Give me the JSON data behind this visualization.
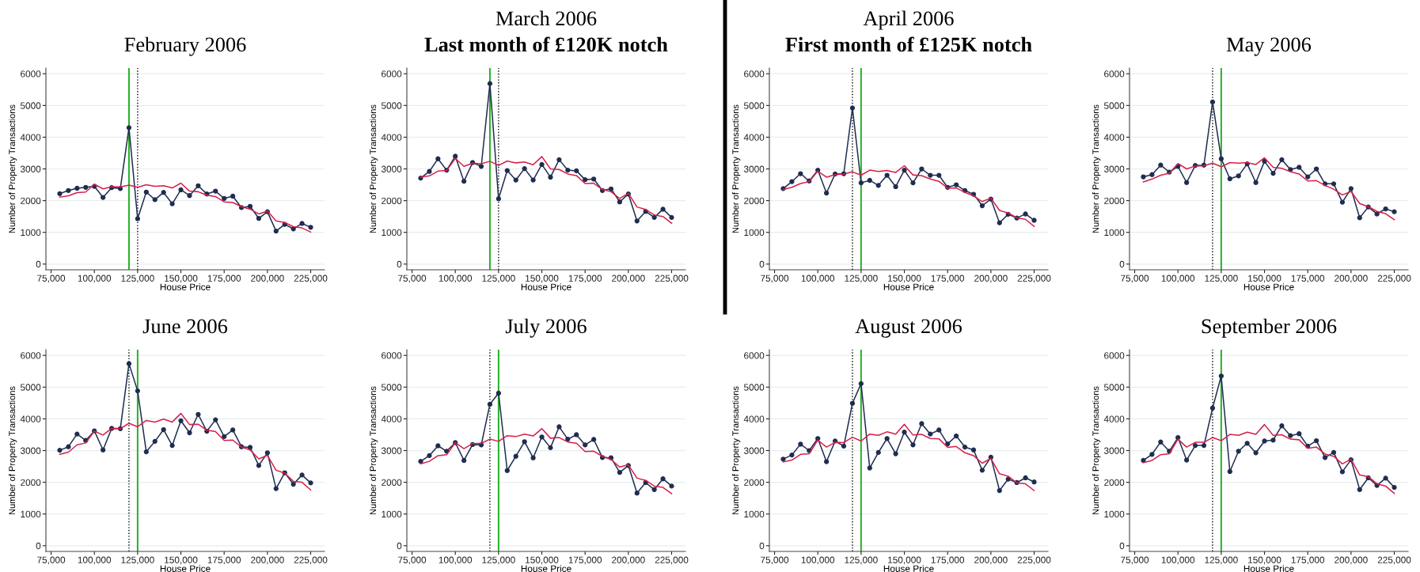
{
  "chart_data": [
    {
      "type": "line",
      "title": "February 2006",
      "xlabel": "House Price",
      "ylabel": "Number of Property Transactions",
      "x": [
        80000,
        85000,
        90000,
        95000,
        100000,
        105000,
        110000,
        115000,
        120000,
        125000,
        130000,
        135000,
        140000,
        145000,
        150000,
        155000,
        160000,
        165000,
        170000,
        175000,
        180000,
        185000,
        190000,
        195000,
        200000,
        205000,
        210000,
        215000,
        220000,
        225000
      ],
      "xlim": [
        72000,
        233000
      ],
      "xticks": [
        {
          "value": 75000,
          "label": "75,000"
        },
        {
          "value": 100000,
          "label": "100,000"
        },
        {
          "value": 125000,
          "label": "125,000"
        },
        {
          "value": 150000,
          "label": "150,000"
        },
        {
          "value": 175000,
          "label": "175,000"
        },
        {
          "value": 200000,
          "label": "200,000"
        },
        {
          "value": 225000,
          "label": "225,000"
        }
      ],
      "ylim": [
        -180,
        6180
      ],
      "yticks": [
        0,
        1000,
        2000,
        3000,
        4000,
        5000,
        6000
      ],
      "grid": "y",
      "ref_lines": [
        {
          "axis": "x",
          "value": 120000,
          "color": "#22b022",
          "line_style": "solid"
        },
        {
          "axis": "x",
          "value": 125000,
          "color": "#000000",
          "line_style": "dotted"
        }
      ],
      "series": [
        {
          "color": "#1f2d50",
          "marker": "circle",
          "values": [
            2220,
            2320,
            2390,
            2420,
            2450,
            2100,
            2410,
            2380,
            4300,
            1430,
            2270,
            2030,
            2260,
            1900,
            2340,
            2160,
            2470,
            2210,
            2300,
            2070,
            2140,
            1780,
            1820,
            1440,
            1650,
            1040,
            1250,
            1110,
            1280,
            1160
          ]
        },
        {
          "color": "#d6204a",
          "marker": "none",
          "values": [
            2110,
            2150,
            2250,
            2270,
            2520,
            2370,
            2440,
            2430,
            2490,
            2420,
            2500,
            2450,
            2470,
            2400,
            2550,
            2300,
            2280,
            2170,
            2130,
            1960,
            1940,
            1810,
            1730,
            1580,
            1670,
            1360,
            1310,
            1180,
            1140,
            1010
          ]
        }
      ]
    },
    {
      "type": "line",
      "title": "March 2006",
      "subtitle": "Last month of £120K notch",
      "xlabel": "House Price",
      "ylabel": "Number of Property Transactions",
      "x": [
        80000,
        85000,
        90000,
        95000,
        100000,
        105000,
        110000,
        115000,
        120000,
        125000,
        130000,
        135000,
        140000,
        145000,
        150000,
        155000,
        160000,
        165000,
        170000,
        175000,
        180000,
        185000,
        190000,
        195000,
        200000,
        205000,
        210000,
        215000,
        220000,
        225000
      ],
      "xlim": [
        72000,
        233000
      ],
      "xticks": [
        {
          "value": 75000,
          "label": "75,000"
        },
        {
          "value": 100000,
          "label": "100,000"
        },
        {
          "value": 125000,
          "label": "125,000"
        },
        {
          "value": 150000,
          "label": "150,000"
        },
        {
          "value": 175000,
          "label": "175,000"
        },
        {
          "value": 200000,
          "label": "200,000"
        },
        {
          "value": 225000,
          "label": "225,000"
        }
      ],
      "ylim": [
        -180,
        6180
      ],
      "yticks": [
        0,
        1000,
        2000,
        3000,
        4000,
        5000,
        6000
      ],
      "grid": "y",
      "ref_lines": [
        {
          "axis": "x",
          "value": 120000,
          "color": "#22b022",
          "line_style": "solid"
        },
        {
          "axis": "x",
          "value": 125000,
          "color": "#000000",
          "line_style": "dotted"
        }
      ],
      "series": [
        {
          "color": "#1f2d50",
          "marker": "circle",
          "values": [
            2710,
            2920,
            3320,
            2960,
            3400,
            2610,
            3200,
            3080,
            5690,
            2060,
            2950,
            2650,
            3010,
            2650,
            3140,
            2740,
            3290,
            2960,
            2940,
            2660,
            2680,
            2320,
            2370,
            1960,
            2210,
            1360,
            1660,
            1470,
            1730,
            1470
          ]
        },
        {
          "color": "#d6204a",
          "marker": "none",
          "values": [
            2740,
            2780,
            2930,
            2950,
            3330,
            3080,
            3180,
            3160,
            3240,
            3110,
            3250,
            3190,
            3220,
            3130,
            3390,
            3000,
            2980,
            2840,
            2790,
            2540,
            2550,
            2350,
            2280,
            2070,
            2230,
            1800,
            1720,
            1550,
            1500,
            1290
          ]
        }
      ]
    },
    {
      "type": "line",
      "title": "April 2006",
      "subtitle": "First month of £125K notch",
      "xlabel": "House Price",
      "ylabel": "Number of Property Transactions",
      "x": [
        80000,
        85000,
        90000,
        95000,
        100000,
        105000,
        110000,
        115000,
        120000,
        125000,
        130000,
        135000,
        140000,
        145000,
        150000,
        155000,
        160000,
        165000,
        170000,
        175000,
        180000,
        185000,
        190000,
        195000,
        200000,
        205000,
        210000,
        215000,
        220000,
        225000
      ],
      "xlim": [
        72000,
        233000
      ],
      "xticks": [
        {
          "value": 75000,
          "label": "75,000"
        },
        {
          "value": 100000,
          "label": "100,000"
        },
        {
          "value": 125000,
          "label": "125,000"
        },
        {
          "value": 150000,
          "label": "150,000"
        },
        {
          "value": 175000,
          "label": "175,000"
        },
        {
          "value": 200000,
          "label": "200,000"
        },
        {
          "value": 225000,
          "label": "225,000"
        }
      ],
      "ylim": [
        -180,
        6180
      ],
      "yticks": [
        0,
        1000,
        2000,
        3000,
        4000,
        5000,
        6000
      ],
      "grid": "y",
      "ref_lines": [
        {
          "axis": "x",
          "value": 120000,
          "color": "#000000",
          "line_style": "dotted"
        },
        {
          "axis": "x",
          "value": 125000,
          "color": "#22b022",
          "line_style": "solid"
        }
      ],
      "series": [
        {
          "color": "#1f2d50",
          "marker": "circle",
          "values": [
            2380,
            2600,
            2850,
            2620,
            2960,
            2240,
            2840,
            2850,
            4920,
            2560,
            2640,
            2480,
            2800,
            2440,
            2960,
            2560,
            3000,
            2800,
            2800,
            2420,
            2500,
            2320,
            2200,
            1840,
            2050,
            1300,
            1570,
            1450,
            1580,
            1380
          ]
        },
        {
          "color": "#d6204a",
          "marker": "none",
          "values": [
            2350,
            2420,
            2540,
            2600,
            2930,
            2740,
            2820,
            2840,
            2910,
            2800,
            2960,
            2920,
            2950,
            2890,
            3100,
            2810,
            2790,
            2680,
            2610,
            2390,
            2400,
            2260,
            2150,
            1970,
            2080,
            1690,
            1610,
            1460,
            1410,
            1190
          ]
        }
      ]
    },
    {
      "type": "line",
      "title": "May 2006",
      "xlabel": "House Price",
      "ylabel": "Number of Property Transactions",
      "x": [
        80000,
        85000,
        90000,
        95000,
        100000,
        105000,
        110000,
        115000,
        120000,
        125000,
        130000,
        135000,
        140000,
        145000,
        150000,
        155000,
        160000,
        165000,
        170000,
        175000,
        180000,
        185000,
        190000,
        195000,
        200000,
        205000,
        210000,
        215000,
        220000,
        225000
      ],
      "xlim": [
        72000,
        233000
      ],
      "xticks": [
        {
          "value": 75000,
          "label": "75,000"
        },
        {
          "value": 100000,
          "label": "100,000"
        },
        {
          "value": 125000,
          "label": "125,000"
        },
        {
          "value": 150000,
          "label": "150,000"
        },
        {
          "value": 175000,
          "label": "175,000"
        },
        {
          "value": 200000,
          "label": "200,000"
        },
        {
          "value": 225000,
          "label": "225,000"
        }
      ],
      "ylim": [
        -180,
        6180
      ],
      "yticks": [
        0,
        1000,
        2000,
        3000,
        4000,
        5000,
        6000
      ],
      "grid": "y",
      "ref_lines": [
        {
          "axis": "x",
          "value": 120000,
          "color": "#000000",
          "line_style": "dotted"
        },
        {
          "axis": "x",
          "value": 125000,
          "color": "#22b022",
          "line_style": "solid"
        }
      ],
      "series": [
        {
          "color": "#1f2d50",
          "marker": "circle",
          "values": [
            2750,
            2820,
            3120,
            2900,
            3080,
            2570,
            3110,
            3120,
            5110,
            3320,
            2690,
            2780,
            3160,
            2570,
            3240,
            2860,
            3290,
            2980,
            3050,
            2750,
            3000,
            2530,
            2530,
            1950,
            2380,
            1460,
            1800,
            1580,
            1740,
            1650
          ]
        },
        {
          "color": "#d6204a",
          "marker": "none",
          "values": [
            2590,
            2680,
            2800,
            2860,
            3170,
            3000,
            3090,
            3100,
            3180,
            3070,
            3200,
            3180,
            3200,
            3140,
            3350,
            3050,
            3020,
            2910,
            2840,
            2620,
            2630,
            2480,
            2360,
            2180,
            2290,
            1910,
            1810,
            1660,
            1590,
            1400
          ]
        }
      ]
    },
    {
      "type": "line",
      "title": "June 2006",
      "xlabel": "House Price",
      "ylabel": "Number of Property Transactions",
      "x": [
        80000,
        85000,
        90000,
        95000,
        100000,
        105000,
        110000,
        115000,
        120000,
        125000,
        130000,
        135000,
        140000,
        145000,
        150000,
        155000,
        160000,
        165000,
        170000,
        175000,
        180000,
        185000,
        190000,
        195000,
        200000,
        205000,
        210000,
        215000,
        220000,
        225000
      ],
      "xlim": [
        72000,
        233000
      ],
      "xticks": [
        {
          "value": 75000,
          "label": "75,000"
        },
        {
          "value": 100000,
          "label": "100,000"
        },
        {
          "value": 125000,
          "label": "125,000"
        },
        {
          "value": 150000,
          "label": "150,000"
        },
        {
          "value": 175000,
          "label": "175,000"
        },
        {
          "value": 200000,
          "label": "200,000"
        },
        {
          "value": 225000,
          "label": "225,000"
        }
      ],
      "ylim": [
        -180,
        6180
      ],
      "yticks": [
        0,
        1000,
        2000,
        3000,
        4000,
        5000,
        6000
      ],
      "grid": "y",
      "ref_lines": [
        {
          "axis": "x",
          "value": 120000,
          "color": "#000000",
          "line_style": "dotted"
        },
        {
          "axis": "x",
          "value": 125000,
          "color": "#22b022",
          "line_style": "solid"
        }
      ],
      "series": [
        {
          "color": "#1f2d50",
          "marker": "circle",
          "values": [
            3010,
            3120,
            3520,
            3320,
            3620,
            3020,
            3700,
            3690,
            5740,
            4880,
            2960,
            3290,
            3660,
            3160,
            3940,
            3560,
            4140,
            3610,
            3970,
            3440,
            3650,
            3120,
            3100,
            2530,
            2930,
            1800,
            2300,
            1940,
            2230,
            1980
          ]
        },
        {
          "color": "#d6204a",
          "marker": "none",
          "values": [
            2880,
            2950,
            3180,
            3240,
            3610,
            3490,
            3700,
            3690,
            3860,
            3750,
            3950,
            3900,
            3990,
            3900,
            4170,
            3820,
            3830,
            3640,
            3600,
            3320,
            3330,
            3110,
            3020,
            2740,
            2850,
            2380,
            2290,
            2030,
            2000,
            1760
          ]
        }
      ]
    },
    {
      "type": "line",
      "title": "July 2006",
      "xlabel": "House Price",
      "ylabel": "Number of Property Transactions",
      "x": [
        80000,
        85000,
        90000,
        95000,
        100000,
        105000,
        110000,
        115000,
        120000,
        125000,
        130000,
        135000,
        140000,
        145000,
        150000,
        155000,
        160000,
        165000,
        170000,
        175000,
        180000,
        185000,
        190000,
        195000,
        200000,
        205000,
        210000,
        215000,
        220000,
        225000
      ],
      "xlim": [
        72000,
        233000
      ],
      "xticks": [
        {
          "value": 75000,
          "label": "75,000"
        },
        {
          "value": 100000,
          "label": "100,000"
        },
        {
          "value": 125000,
          "label": "125,000"
        },
        {
          "value": 150000,
          "label": "150,000"
        },
        {
          "value": 175000,
          "label": "175,000"
        },
        {
          "value": 200000,
          "label": "200,000"
        },
        {
          "value": 225000,
          "label": "225,000"
        }
      ],
      "ylim": [
        -180,
        6180
      ],
      "yticks": [
        0,
        1000,
        2000,
        3000,
        4000,
        5000,
        6000
      ],
      "grid": "y",
      "ref_lines": [
        {
          "axis": "x",
          "value": 120000,
          "color": "#000000",
          "line_style": "dotted"
        },
        {
          "axis": "x",
          "value": 125000,
          "color": "#22b022",
          "line_style": "solid"
        }
      ],
      "series": [
        {
          "color": "#1f2d50",
          "marker": "circle",
          "values": [
            2660,
            2840,
            3150,
            2980,
            3250,
            2690,
            3190,
            3180,
            4460,
            4810,
            2370,
            2820,
            3280,
            2770,
            3430,
            3090,
            3750,
            3360,
            3500,
            3180,
            3350,
            2780,
            2770,
            2310,
            2530,
            1660,
            1990,
            1770,
            2110,
            1880
          ]
        },
        {
          "color": "#d6204a",
          "marker": "none",
          "values": [
            2580,
            2660,
            2840,
            2870,
            3250,
            3060,
            3220,
            3230,
            3360,
            3290,
            3470,
            3440,
            3520,
            3460,
            3690,
            3390,
            3410,
            3270,
            3230,
            2970,
            2980,
            2820,
            2720,
            2480,
            2550,
            2130,
            2060,
            1880,
            1840,
            1640
          ]
        }
      ]
    },
    {
      "type": "line",
      "title": "August 2006",
      "xlabel": "House Price",
      "ylabel": "Number of Property Transactions",
      "x": [
        80000,
        85000,
        90000,
        95000,
        100000,
        105000,
        110000,
        115000,
        120000,
        125000,
        130000,
        135000,
        140000,
        145000,
        150000,
        155000,
        160000,
        165000,
        170000,
        175000,
        180000,
        185000,
        190000,
        195000,
        200000,
        205000,
        210000,
        215000,
        220000,
        225000
      ],
      "xlim": [
        72000,
        233000
      ],
      "xticks": [
        {
          "value": 75000,
          "label": "75,000"
        },
        {
          "value": 100000,
          "label": "100,000"
        },
        {
          "value": 125000,
          "label": "125,000"
        },
        {
          "value": 150000,
          "label": "150,000"
        },
        {
          "value": 175000,
          "label": "175,000"
        },
        {
          "value": 200000,
          "label": "200,000"
        },
        {
          "value": 225000,
          "label": "225,000"
        }
      ],
      "ylim": [
        -180,
        6180
      ],
      "yticks": [
        0,
        1000,
        2000,
        3000,
        4000,
        5000,
        6000
      ],
      "grid": "y",
      "ref_lines": [
        {
          "axis": "x",
          "value": 120000,
          "color": "#000000",
          "line_style": "dotted"
        },
        {
          "axis": "x",
          "value": 125000,
          "color": "#22b022",
          "line_style": "solid"
        }
      ],
      "series": [
        {
          "color": "#1f2d50",
          "marker": "circle",
          "values": [
            2730,
            2860,
            3200,
            3000,
            3380,
            2650,
            3300,
            3140,
            4490,
            5110,
            2450,
            2940,
            3380,
            2900,
            3580,
            3180,
            3850,
            3520,
            3650,
            3210,
            3460,
            3110,
            3020,
            2380,
            2790,
            1740,
            2100,
            1990,
            2140,
            2010
          ]
        },
        {
          "color": "#d6204a",
          "marker": "none",
          "values": [
            2640,
            2700,
            2880,
            2900,
            3330,
            3110,
            3260,
            3250,
            3420,
            3300,
            3520,
            3480,
            3590,
            3520,
            3830,
            3490,
            3510,
            3380,
            3370,
            3100,
            3130,
            2930,
            2840,
            2600,
            2750,
            2270,
            2190,
            1980,
            1950,
            1740
          ]
        }
      ]
    },
    {
      "type": "line",
      "title": "September 2006",
      "xlabel": "House Price",
      "ylabel": "Number of Property Transactions",
      "x": [
        80000,
        85000,
        90000,
        95000,
        100000,
        105000,
        110000,
        115000,
        120000,
        125000,
        130000,
        135000,
        140000,
        145000,
        150000,
        155000,
        160000,
        165000,
        170000,
        175000,
        180000,
        185000,
        190000,
        195000,
        200000,
        205000,
        210000,
        215000,
        220000,
        225000
      ],
      "xlim": [
        72000,
        233000
      ],
      "xticks": [
        {
          "value": 75000,
          "label": "75,000"
        },
        {
          "value": 100000,
          "label": "100,000"
        },
        {
          "value": 125000,
          "label": "125,000"
        },
        {
          "value": 150000,
          "label": "150,000"
        },
        {
          "value": 175000,
          "label": "175,000"
        },
        {
          "value": 200000,
          "label": "200,000"
        },
        {
          "value": 225000,
          "label": "225,000"
        }
      ],
      "ylim": [
        -180,
        6180
      ],
      "yticks": [
        0,
        1000,
        2000,
        3000,
        4000,
        5000,
        6000
      ],
      "grid": "y",
      "ref_lines": [
        {
          "axis": "x",
          "value": 120000,
          "color": "#000000",
          "line_style": "dotted"
        },
        {
          "axis": "x",
          "value": 125000,
          "color": "#22b022",
          "line_style": "solid"
        }
      ],
      "series": [
        {
          "color": "#1f2d50",
          "marker": "circle",
          "values": [
            2690,
            2880,
            3270,
            2980,
            3410,
            2700,
            3160,
            3160,
            4340,
            5350,
            2340,
            2980,
            3230,
            2930,
            3300,
            3330,
            3780,
            3470,
            3530,
            3140,
            3310,
            2780,
            2940,
            2330,
            2710,
            1770,
            2140,
            1900,
            2130,
            1840
          ]
        },
        {
          "color": "#d6204a",
          "marker": "none",
          "values": [
            2620,
            2690,
            2870,
            2900,
            3360,
            3110,
            3260,
            3260,
            3410,
            3310,
            3510,
            3480,
            3580,
            3510,
            3820,
            3480,
            3500,
            3360,
            3340,
            3070,
            3110,
            2890,
            2820,
            2580,
            2730,
            2230,
            2180,
            1950,
            1880,
            1650
          ]
        }
      ]
    }
  ]
}
